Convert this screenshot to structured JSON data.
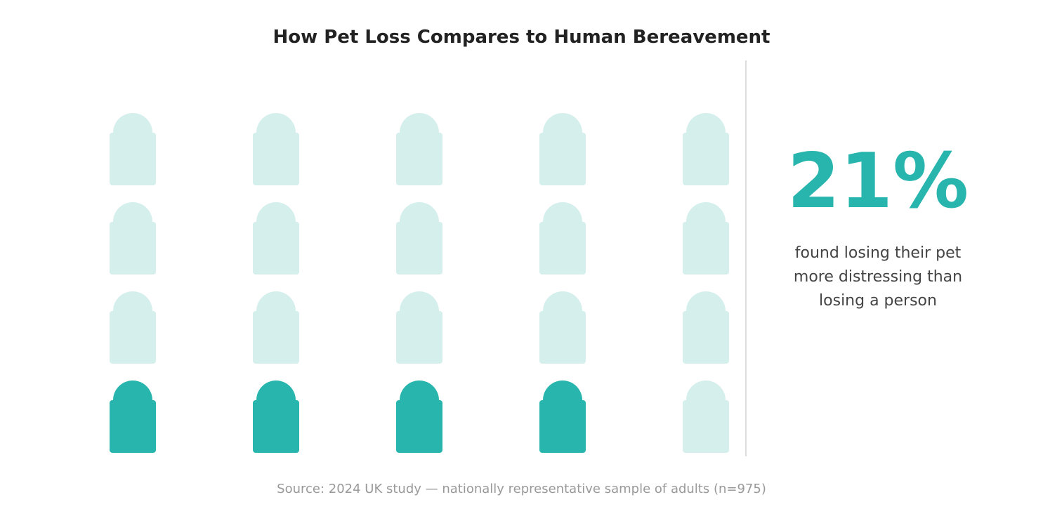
{
  "title": "How Pet Loss Compares to Human Bereavement",
  "chart_data": {
    "type": "waffle",
    "rows": 4,
    "cols": 5,
    "total_icons": 20,
    "highlighted_icons": 4,
    "value_percent": 21,
    "icon": "tombstone-icon",
    "colors": {
      "highlight": "#27b5ad",
      "base": "#d5efec"
    }
  },
  "callout": {
    "value": "21%",
    "caption_lines": [
      "found losing their pet",
      "more distressing than",
      "losing a person"
    ]
  },
  "source": "Source: 2024 UK study — nationally representative sample of adults (n=975)"
}
